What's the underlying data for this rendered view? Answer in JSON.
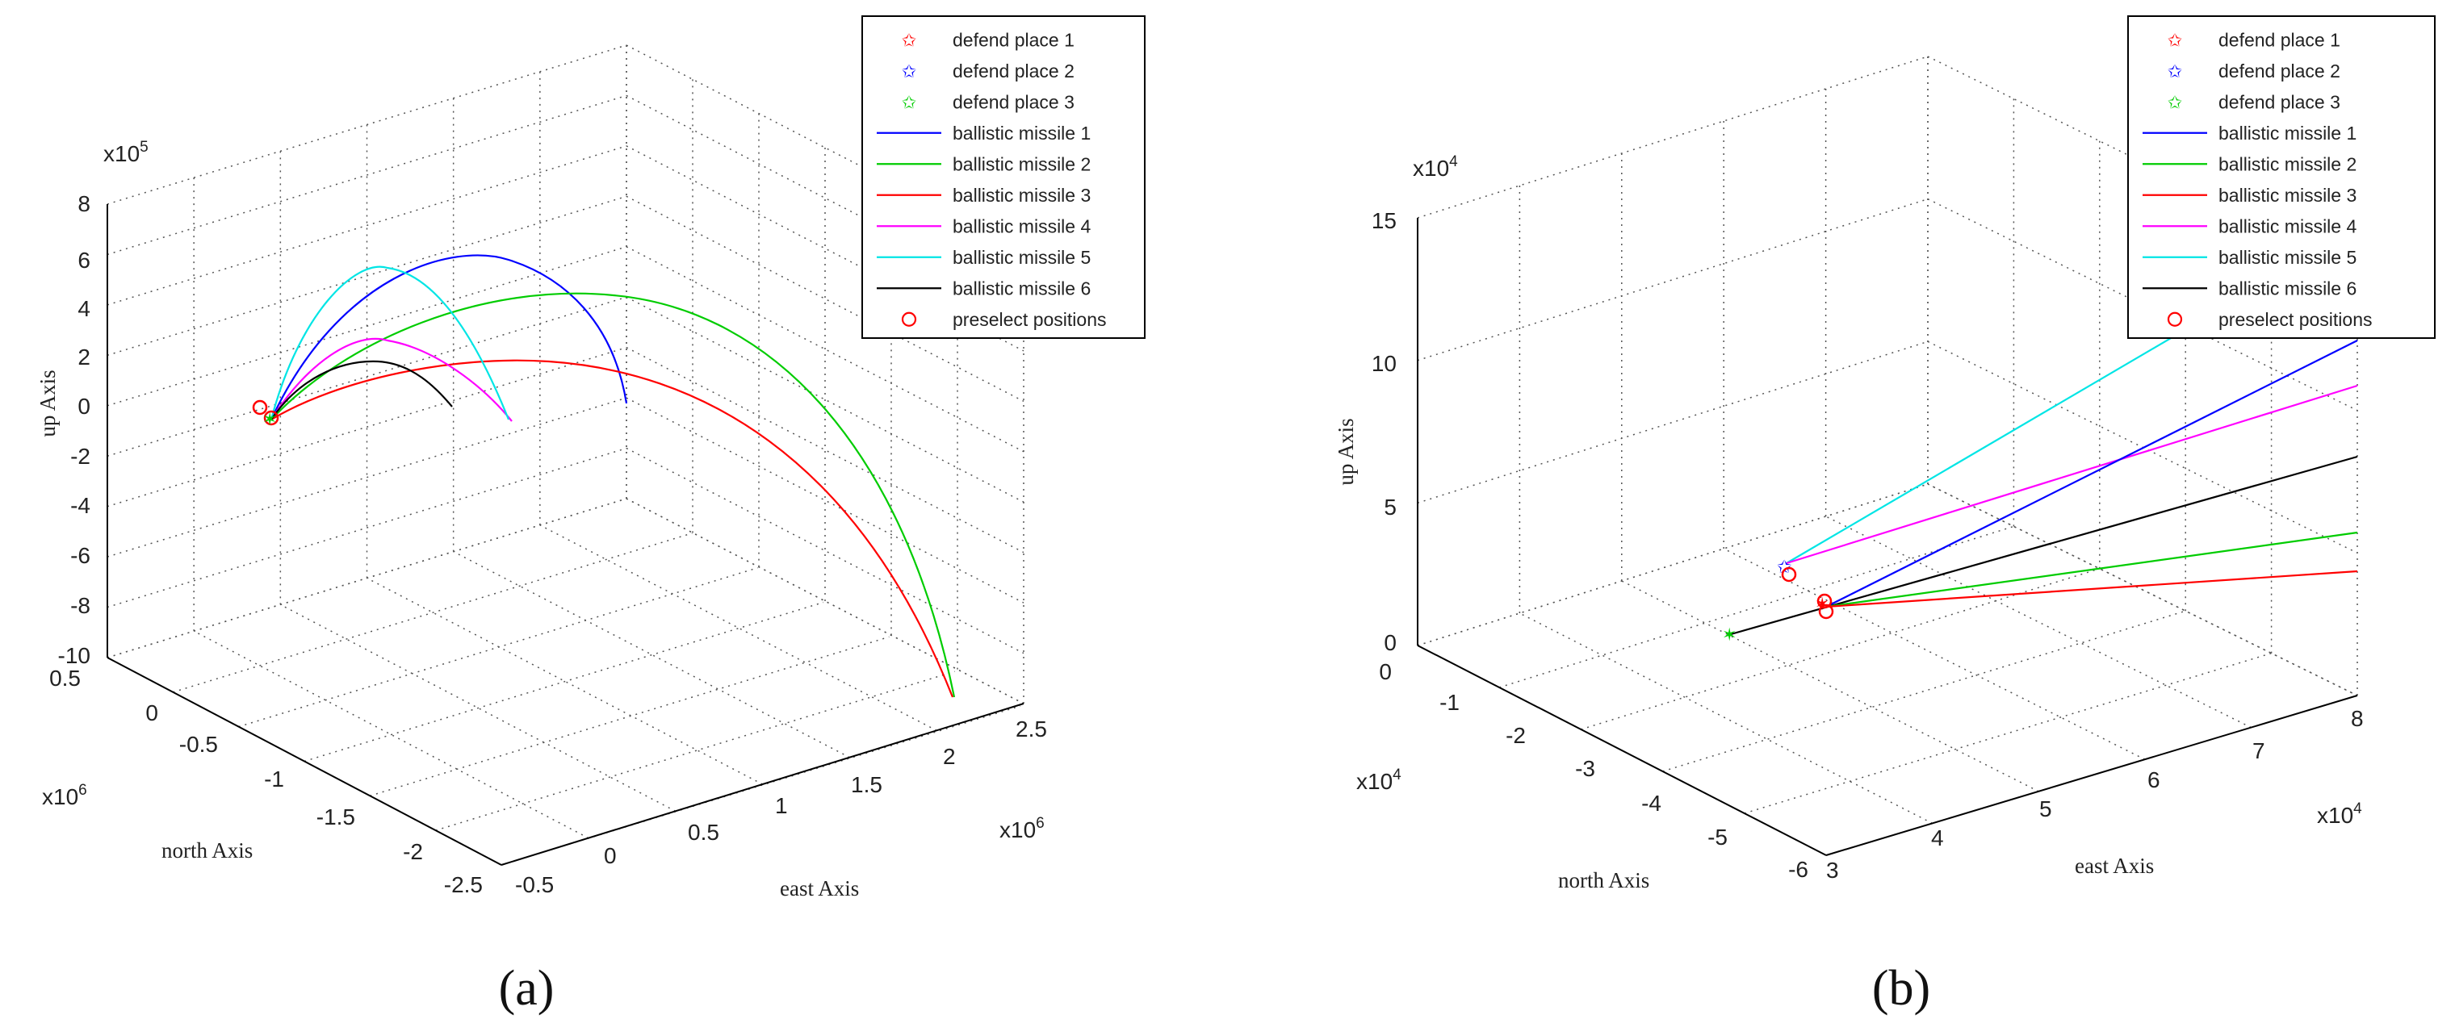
{
  "panels": [
    {
      "caption": "(a)",
      "legend": [
        {
          "label": "defend place 1",
          "marker": "star",
          "color": "#ff0000"
        },
        {
          "label": "defend place 2",
          "marker": "star",
          "color": "#0000ff"
        },
        {
          "label": "defend place 3",
          "marker": "star",
          "color": "#00cc00"
        },
        {
          "label": "ballistic missile 1",
          "marker": "line",
          "color": "#0000ff"
        },
        {
          "label": "ballistic missile 2",
          "marker": "line",
          "color": "#00cc00"
        },
        {
          "label": "ballistic missile 3",
          "marker": "line",
          "color": "#ff0000"
        },
        {
          "label": "ballistic missile 4",
          "marker": "line",
          "color": "#ff00ff"
        },
        {
          "label": "ballistic missile 5",
          "marker": "line",
          "color": "#00e5e5"
        },
        {
          "label": "ballistic missile 6",
          "marker": "line",
          "color": "#000000"
        },
        {
          "label": "preselect positions",
          "marker": "circle",
          "color": "#ff0000"
        }
      ],
      "axes": {
        "up_label": "up Axis",
        "north_label": "north Axis",
        "east_label": "east Axis",
        "up_multiplier": "x10",
        "up_exp": "5",
        "north_multiplier": "x10",
        "north_exp": "6",
        "east_multiplier": "x10",
        "east_exp": "6",
        "up_ticks": [
          "8",
          "6",
          "4",
          "2",
          "0",
          "-2",
          "-4",
          "-6",
          "-8",
          "-10"
        ],
        "north_ticks": [
          "0.5",
          "0",
          "-0.5",
          "-1",
          "-1.5",
          "-2",
          "-2.5"
        ],
        "east_ticks": [
          "-0.5",
          "0",
          "0.5",
          "1",
          "1.5",
          "2",
          "2.5"
        ]
      }
    },
    {
      "caption": "(b)",
      "legend": [
        {
          "label": "defend place 1",
          "marker": "star",
          "color": "#ff0000"
        },
        {
          "label": "defend place 2",
          "marker": "star",
          "color": "#0000ff"
        },
        {
          "label": "defend place 3",
          "marker": "star",
          "color": "#00cc00"
        },
        {
          "label": "ballistic missile 1",
          "marker": "line",
          "color": "#0000ff"
        },
        {
          "label": "ballistic missile 2",
          "marker": "line",
          "color": "#00cc00"
        },
        {
          "label": "ballistic missile 3",
          "marker": "line",
          "color": "#ff0000"
        },
        {
          "label": "ballistic missile 4",
          "marker": "line",
          "color": "#ff00ff"
        },
        {
          "label": "ballistic missile 5",
          "marker": "line",
          "color": "#00e5e5"
        },
        {
          "label": "ballistic missile 6",
          "marker": "line",
          "color": "#000000"
        },
        {
          "label": "preselect positions",
          "marker": "circle",
          "color": "#ff0000"
        }
      ],
      "axes": {
        "up_label": "up Axis",
        "north_label": "north Axis",
        "east_label": "east Axis",
        "up_multiplier": "x10",
        "up_exp": "4",
        "north_multiplier": "x10",
        "north_exp": "4",
        "east_multiplier": "x10",
        "east_exp": "4",
        "up_ticks": [
          "15",
          "10",
          "5",
          "0"
        ],
        "north_ticks": [
          "0",
          "-1",
          "-2",
          "-3",
          "-4",
          "-5",
          "-6"
        ],
        "east_ticks": [
          "3",
          "4",
          "5",
          "6",
          "7",
          "8"
        ]
      }
    }
  ],
  "chart_data": [
    {
      "type": "line",
      "subtype": "3d-trajectory",
      "x_axis": "east",
      "y_axis": "north",
      "z_axis": "up",
      "xlim": [
        -0.5,
        2.5
      ],
      "ylim": [
        -2.5,
        0.5
      ],
      "zlim": [
        -10,
        8
      ],
      "x_scale": "x10^6",
      "y_scale": "x10^6",
      "z_scale": "x10^5",
      "grid": true,
      "legend_position": "top-right",
      "series": [
        {
          "name": "ballistic missile 1",
          "color": "#0000ff",
          "launch": [
            0.3,
            -0.05,
            0
          ],
          "impact": [
            1.35,
            0.4,
            0
          ],
          "apogee": 6.0
        },
        {
          "name": "ballistic missile 2",
          "color": "#00cc00",
          "launch": [
            0.3,
            -0.05,
            0
          ],
          "impact": [
            2.2,
            -0.3,
            -10
          ],
          "apogee": 5.0
        },
        {
          "name": "ballistic missile 3",
          "color": "#ff0000",
          "launch": [
            0.3,
            -0.05,
            0
          ],
          "impact": [
            2.2,
            -0.3,
            -10
          ],
          "apogee": 2.6
        },
        {
          "name": "ballistic missile 4",
          "color": "#ff00ff",
          "launch": [
            0.3,
            -0.05,
            0
          ],
          "impact": [
            0.85,
            0.2,
            0
          ],
          "apogee": 2.9
        },
        {
          "name": "ballistic missile 5",
          "color": "#00e5e5",
          "launch": [
            0.3,
            -0.05,
            0
          ],
          "impact": [
            0.85,
            0.2,
            0
          ],
          "apogee": 6.0
        },
        {
          "name": "ballistic missile 6",
          "color": "#000000",
          "launch": [
            0.3,
            -0.05,
            0
          ],
          "impact": [
            0.75,
            0.1,
            0
          ],
          "apogee": 2.0
        }
      ]
    },
    {
      "type": "line",
      "subtype": "3d-trajectory-zoom",
      "x_axis": "east",
      "y_axis": "north",
      "z_axis": "up",
      "xlim": [
        3,
        8
      ],
      "ylim": [
        -6,
        0
      ],
      "zlim": [
        0,
        15
      ],
      "x_scale": "x10^4",
      "y_scale": "x10^4",
      "z_scale": "x10^4",
      "grid": true,
      "legend_position": "top-right",
      "series": [
        {
          "name": "ballistic missile 1",
          "color": "#0000ff"
        },
        {
          "name": "ballistic missile 2",
          "color": "#00cc00"
        },
        {
          "name": "ballistic missile 3",
          "color": "#ff0000"
        },
        {
          "name": "ballistic missile 4",
          "color": "#ff00ff"
        },
        {
          "name": "ballistic missile 5",
          "color": "#00e5e5"
        },
        {
          "name": "ballistic missile 6",
          "color": "#000000"
        }
      ]
    }
  ]
}
